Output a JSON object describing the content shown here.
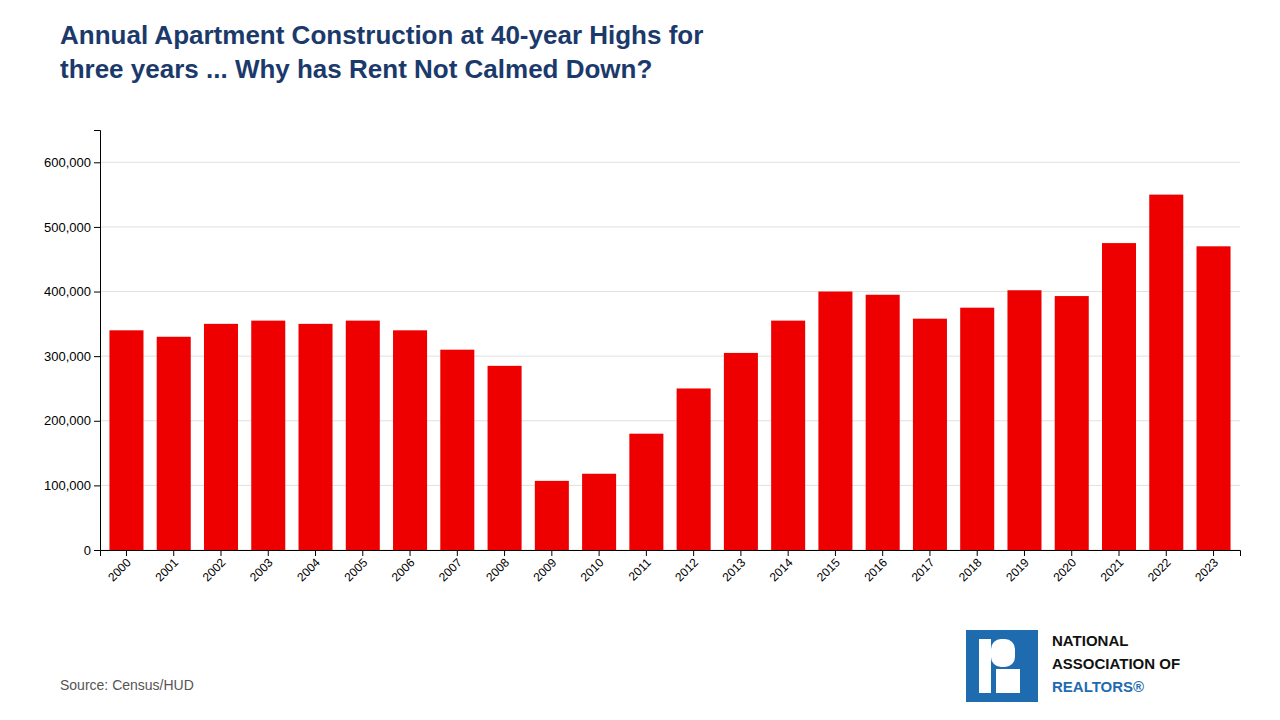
{
  "chart_data": {
    "type": "bar",
    "title": "Annual Apartment Construction at 40-year Highs for\nthree years ... Why has Rent Not Calmed Down?",
    "categories": [
      "2000",
      "2001",
      "2002",
      "2003",
      "2004",
      "2005",
      "2006",
      "2007",
      "2008",
      "2009",
      "2010",
      "2011",
      "2012",
      "2013",
      "2014",
      "2015",
      "2016",
      "2017",
      "2018",
      "2019",
      "2020",
      "2021",
      "2022",
      "2023"
    ],
    "values": [
      340000,
      330000,
      350000,
      355000,
      350000,
      355000,
      340000,
      310000,
      285000,
      107000,
      118000,
      180000,
      250000,
      305000,
      355000,
      400000,
      395000,
      358000,
      375000,
      402000,
      393000,
      475000,
      550000,
      470000
    ],
    "color": "#ee0000",
    "ylim": [
      0,
      650000
    ],
    "yticks": [
      0,
      {
        "value": 100000,
        "label": "100,000"
      },
      {
        "value": 200000,
        "label": "200,000"
      },
      {
        "value": 300000,
        "label": "300,000"
      },
      {
        "value": 400000,
        "label": "400,000"
      },
      {
        "value": 500000,
        "label": "500,000"
      },
      {
        "value": 600000,
        "label": "600,000"
      }
    ],
    "grid": true,
    "annotations": [
      "Source: Census/HUD",
      "NATIONAL",
      "ASSOCIATION OF",
      "REALTORS®"
    ]
  }
}
